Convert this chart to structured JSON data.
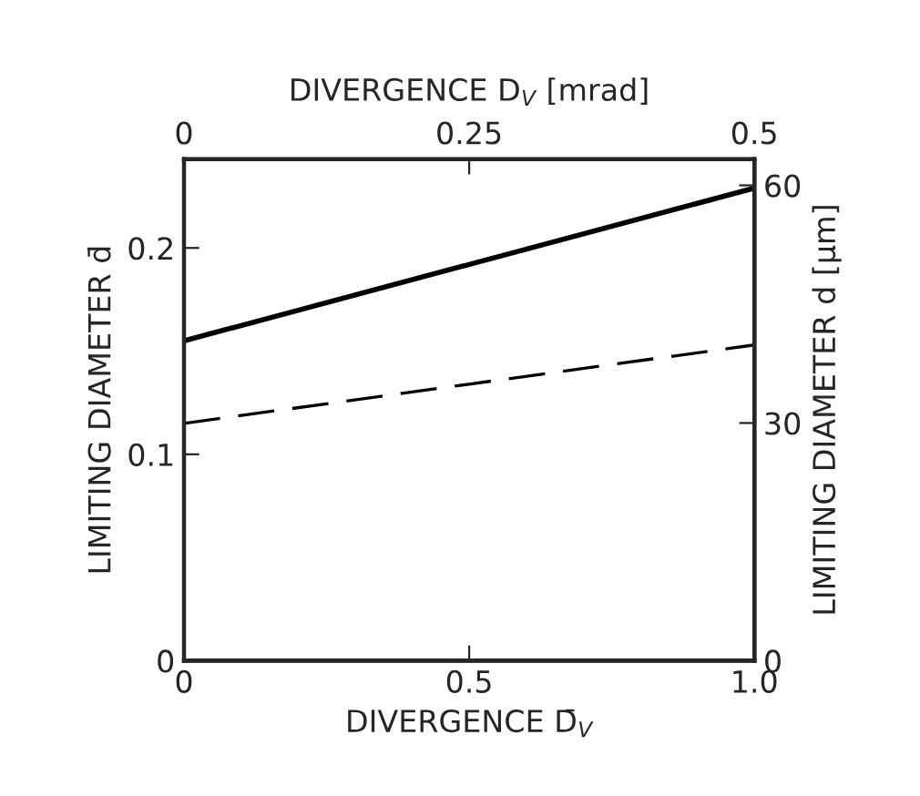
{
  "chart_data": {
    "type": "line",
    "xlabel": "DIVERGENCE D̄$_{V}$",
    "ylabel": "LIMITING DIAMETER d̄",
    "y2label": "LIMITING DIAMETER d [µm]",
    "x2label": "DIVERGENCE D$_{V}$ [mrad]",
    "x": [
      0,
      0.5,
      1.0
    ],
    "series": [
      {
        "color": "#000000",
        "line_style": "solid",
        "values": [
          0.155,
          0.192,
          0.229
        ]
      },
      {
        "color": "#000000",
        "line_style": "dashed",
        "values": [
          0.115,
          0.134,
          0.153
        ]
      }
    ],
    "xlim": [
      0,
      1.0
    ],
    "xticks": [
      0,
      0.5,
      {
        "value": 1.0,
        "label": "1.0"
      }
    ],
    "ylim": [
      0,
      0.243
    ],
    "yticks": [
      0,
      0.1,
      0.2
    ],
    "x2lim": [
      0,
      0.5
    ],
    "x2ticks": [
      0,
      0.25,
      0.5
    ],
    "y2lim": [
      0,
      63.3
    ],
    "y2ticks": [
      0,
      30,
      60
    ],
    "grid": false,
    "legend": false
  }
}
